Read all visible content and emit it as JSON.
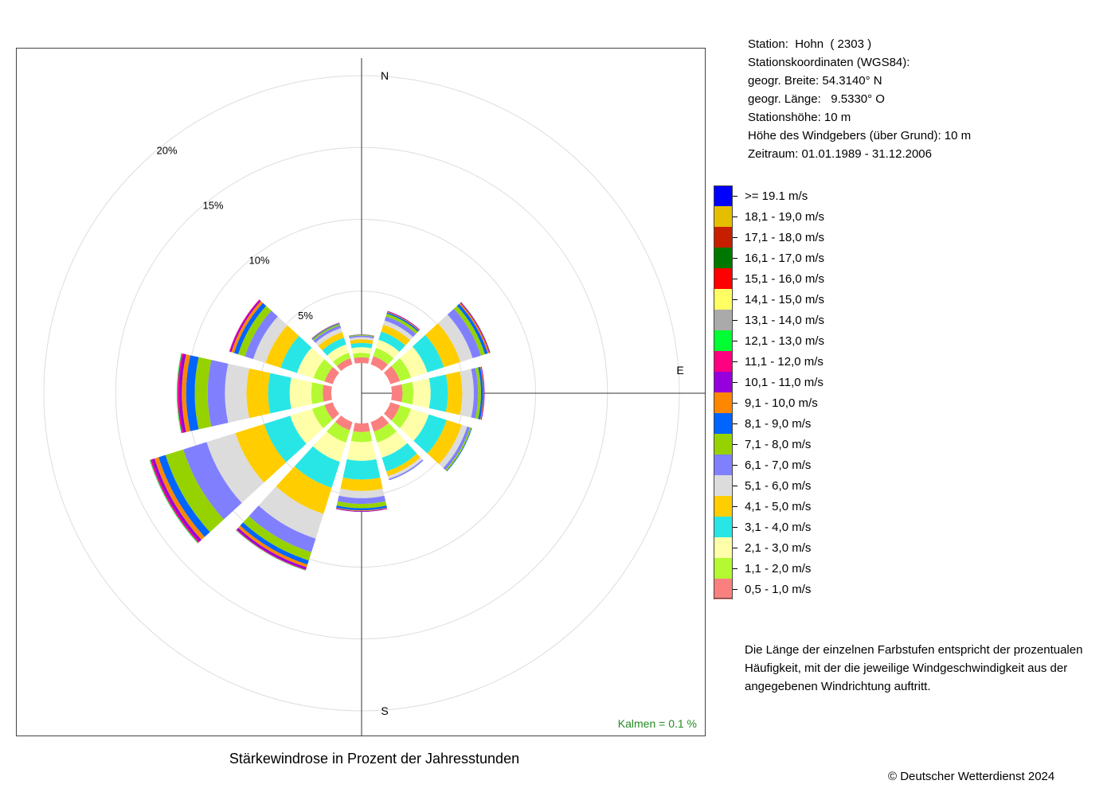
{
  "title": "Stärkewindrose in Prozent der Jahresstunden",
  "station_info": [
    "Station:  Hohn  ( 2303 )",
    "Stationskoordinaten (WGS84):",
    "geogr. Breite: 54.3140° N",
    "geogr. Länge:   9.5330° O",
    "Stationshöhe: 10 m",
    "Höhe des Windgebers (über Grund): 10 m",
    "Zeitraum: 01.01.1989 - 31.12.2006"
  ],
  "compass": {
    "north": "N",
    "east": "E",
    "south": "S"
  },
  "calm_label": "Kalmen  =  0.1 %",
  "note": "Die Länge der einzelnen Farbstufen entspricht der prozentualen Häufigkeit, mit der die jeweilige Windgeschwindigkeit aus der angegebenen Windrichtung auftritt.",
  "copyright": "© Deutscher Wetterdienst  2024",
  "chart_data": {
    "type": "stacked-polar-bar",
    "ring_labels": [
      "5%",
      "10%",
      "15%",
      "20%"
    ],
    "rings_percent": [
      5,
      10,
      15,
      20
    ],
    "calm_percent": 0.1,
    "directions_deg": [
      0,
      30,
      60,
      90,
      120,
      150,
      180,
      210,
      240,
      270,
      300,
      330
    ],
    "speed_classes": [
      {
        "label": "0,5 - 1,0 m/s",
        "color": "#FA8080"
      },
      {
        "label": "1,1 - 2,0 m/s",
        "color": "#B4FA32"
      },
      {
        "label": "2,1 - 3,0 m/s",
        "color": "#FFFFAA"
      },
      {
        "label": "3,1 - 4,0 m/s",
        "color": "#28E6E6"
      },
      {
        "label": "4,1 - 5,0 m/s",
        "color": "#FFCD00"
      },
      {
        "label": "5,1 - 6,0 m/s",
        "color": "#DCDCDC"
      },
      {
        "label": "6,1 - 7,0 m/s",
        "color": "#8080FF"
      },
      {
        "label": "7,1 - 8,0 m/s",
        "color": "#96D200"
      },
      {
        "label": "8,1 - 9,0 m/s",
        "color": "#0064FF"
      },
      {
        "label": "9,1 - 10,0 m/s",
        "color": "#FF8700"
      },
      {
        "label": "10,1 - 11,0 m/s",
        "color": "#9600DC"
      },
      {
        "label": "11,1 - 12,0 m/s",
        "color": "#FF0080"
      },
      {
        "label": "12,1 - 13,0 m/s",
        "color": "#00FF32"
      },
      {
        "label": "13,1 - 14,0 m/s",
        "color": "#AAAAAA"
      },
      {
        "label": "14,1 - 15,0 m/s",
        "color": "#FFFF64"
      },
      {
        "label": "15,1 - 16,0 m/s",
        "color": "#FF0000"
      },
      {
        "label": "16,1 - 17,0 m/s",
        "color": "#007800"
      },
      {
        "label": "17,1 - 18,0 m/s",
        "color": "#C81E00"
      },
      {
        "label": "18,1 - 19,0 m/s",
        "color": "#E6BE00"
      },
      {
        "label": ">= 19.1 m/s",
        "color": "#0000FF"
      }
    ],
    "series": [
      {
        "direction": 0,
        "values": [
          0.4,
          0.3,
          0.4,
          0.3,
          0.25,
          0.15,
          0.1,
          0.05,
          0.03,
          0.02
        ]
      },
      {
        "direction": 30,
        "values": [
          0.6,
          0.6,
          0.6,
          0.6,
          0.5,
          0.3,
          0.3,
          0.2,
          0.1,
          0.05,
          0.05
        ]
      },
      {
        "direction": 60,
        "values": [
          0.7,
          0.8,
          1.2,
          1.2,
          1.2,
          0.9,
          0.6,
          0.3,
          0.2,
          0.1,
          0.05,
          0.03,
          0.02
        ]
      },
      {
        "direction": 90,
        "values": [
          0.75,
          0.75,
          1.2,
          1.2,
          1.0,
          0.8,
          0.3,
          0.2,
          0.15,
          0.05,
          0.05
        ]
      },
      {
        "direction": 120,
        "values": [
          0.7,
          0.8,
          1.3,
          1.3,
          1.1,
          0.4,
          0.2,
          0.1,
          0.05
        ]
      },
      {
        "direction": 150,
        "values": [
          0.7,
          0.8,
          1.1,
          1.0,
          0.35,
          0.2,
          0.1
        ]
      },
      {
        "direction": 180,
        "values": [
          0.6,
          0.7,
          1.3,
          1.3,
          0.8,
          0.5,
          0.4,
          0.3,
          0.15,
          0.05,
          0.05
        ]
      },
      {
        "direction": 210,
        "values": [
          0.6,
          0.9,
          1.4,
          1.9,
          1.9,
          1.8,
          1.0,
          0.6,
          0.3,
          0.2,
          0.15,
          0.05,
          0.03,
          0.02
        ]
      },
      {
        "direction": 240,
        "values": [
          0.6,
          0.9,
          1.6,
          1.9,
          2.1,
          2.1,
          1.7,
          1.3,
          0.5,
          0.3,
          0.2,
          0.1,
          0.05,
          0.02
        ]
      },
      {
        "direction": 270,
        "values": [
          0.6,
          0.8,
          1.5,
          1.5,
          1.5,
          1.5,
          1.2,
          0.9,
          0.6,
          0.3,
          0.2,
          0.1,
          0.05
        ]
      },
      {
        "direction": 300,
        "values": [
          0.6,
          0.8,
          1.2,
          1.2,
          1.1,
          0.9,
          0.6,
          0.5,
          0.3,
          0.2,
          0.1,
          0.05
        ]
      },
      {
        "direction": 330,
        "values": [
          0.45,
          0.4,
          0.6,
          0.5,
          0.4,
          0.3,
          0.2,
          0.1,
          0.05,
          0.03,
          0.02
        ]
      }
    ]
  }
}
